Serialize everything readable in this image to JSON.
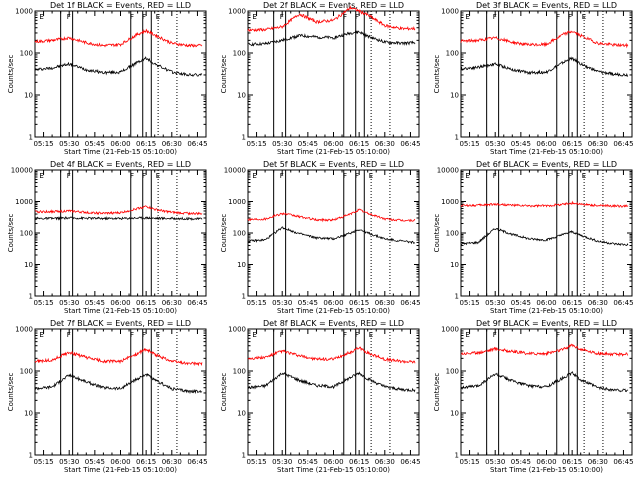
{
  "colors": {
    "background": "#ffffff",
    "frame": "#000000",
    "events": "#000000",
    "lld": "#ff0000"
  },
  "xlabel": "Start Time (21-Feb-15 05:10:00)",
  "ylabel": "Counts/sec",
  "chart_data": [
    {
      "type": "line",
      "title": "Det 1f BLACK = Events, RED = LLD",
      "xlabel": "Start Time (21-Feb-15 05:10:00)",
      "ylabel": "Counts/sec",
      "yscale": "log",
      "ylim": [
        1,
        1000
      ],
      "x_ticks": [
        "05:15",
        "05:30",
        "05:45",
        "06:00",
        "06:15",
        "06:30",
        "06:45"
      ],
      "y_ticks": [
        "1",
        "10",
        "100",
        "1000"
      ],
      "solid_markers": [
        "05:25",
        "05:32",
        "06:06",
        "06:13",
        "06:18"
      ],
      "dotted_markers": [
        "06:22",
        "06:33"
      ],
      "marker_labels": [
        {
          "x": "05:12",
          "text": "E"
        },
        {
          "x": "05:28",
          "text": "F"
        },
        {
          "x": "06:05",
          "text": "F"
        },
        {
          "x": "06:12",
          "text": "F"
        },
        {
          "x": "06:20",
          "text": "E"
        }
      ],
      "x": [
        "05:10",
        "05:20",
        "05:30",
        "05:40",
        "05:50",
        "06:00",
        "06:10",
        "06:15",
        "06:20",
        "06:30",
        "06:40",
        "06:48"
      ],
      "series": [
        {
          "name": "Events",
          "color": "#000000",
          "values": [
            40,
            44,
            55,
            40,
            34,
            35,
            60,
            75,
            55,
            35,
            30,
            30
          ]
        },
        {
          "name": "LLD",
          "color": "#ff0000",
          "values": [
            185,
            200,
            230,
            175,
            150,
            160,
            280,
            340,
            270,
            170,
            150,
            150
          ]
        }
      ]
    },
    {
      "type": "line",
      "title": "Det 2f BLACK = Events, RED = LLD",
      "xlabel": "Start Time (21-Feb-15 05:10:00)",
      "ylabel": "Counts/sec",
      "yscale": "log",
      "ylim": [
        1,
        1000
      ],
      "x_ticks": [
        "05:15",
        "05:30",
        "05:45",
        "06:00",
        "06:15",
        "06:30",
        "06:45"
      ],
      "y_ticks": [
        "1",
        "10",
        "100",
        "1000"
      ],
      "solid_markers": [
        "05:25",
        "05:32",
        "06:06",
        "06:13",
        "06:18"
      ],
      "dotted_markers": [
        "06:22",
        "06:33"
      ],
      "marker_labels": [
        {
          "x": "05:12",
          "text": "E"
        },
        {
          "x": "05:28",
          "text": "F"
        },
        {
          "x": "06:05",
          "text": "F"
        },
        {
          "x": "06:12",
          "text": "F"
        },
        {
          "x": "06:20",
          "text": "E"
        }
      ],
      "x": [
        "05:10",
        "05:20",
        "05:30",
        "05:40",
        "05:50",
        "06:00",
        "06:10",
        "06:15",
        "06:20",
        "06:30",
        "06:40",
        "06:48"
      ],
      "series": [
        {
          "name": "Events",
          "color": "#000000",
          "values": [
            160,
            165,
            200,
            260,
            240,
            230,
            300,
            320,
            250,
            180,
            170,
            175
          ]
        },
        {
          "name": "LLD",
          "color": "#ff0000",
          "values": [
            350,
            360,
            420,
            850,
            550,
            600,
            1200,
            1000,
            800,
            450,
            380,
            380
          ]
        }
      ]
    },
    {
      "type": "line",
      "title": "Det 3f BLACK = Events, RED = LLD",
      "xlabel": "Start Time (21-Feb-15 05:10:00)",
      "ylabel": "Counts/sec",
      "yscale": "log",
      "ylim": [
        1,
        1000
      ],
      "x_ticks": [
        "05:15",
        "05:30",
        "05:45",
        "06:00",
        "06:15",
        "06:30",
        "06:45"
      ],
      "y_ticks": [
        "1",
        "10",
        "100",
        "1000"
      ],
      "solid_markers": [
        "05:25",
        "05:32",
        "06:06",
        "06:13",
        "06:18"
      ],
      "dotted_markers": [
        "06:22",
        "06:33"
      ],
      "marker_labels": [
        {
          "x": "05:12",
          "text": "E"
        },
        {
          "x": "05:28",
          "text": "F"
        },
        {
          "x": "06:05",
          "text": "F"
        },
        {
          "x": "06:12",
          "text": "F"
        },
        {
          "x": "06:20",
          "text": "E"
        }
      ],
      "x": [
        "05:10",
        "05:20",
        "05:30",
        "05:40",
        "05:50",
        "06:00",
        "06:10",
        "06:15",
        "06:20",
        "06:30",
        "06:40",
        "06:48"
      ],
      "series": [
        {
          "name": "Events",
          "color": "#000000",
          "values": [
            42,
            46,
            55,
            40,
            34,
            35,
            60,
            75,
            55,
            36,
            31,
            30
          ]
        },
        {
          "name": "LLD",
          "color": "#ff0000",
          "values": [
            190,
            200,
            230,
            180,
            155,
            160,
            280,
            330,
            260,
            170,
            155,
            150
          ]
        }
      ]
    },
    {
      "type": "line",
      "title": "Det 4f BLACK = Events, RED = LLD",
      "xlabel": "Start Time (21-Feb-15 05:10:00)",
      "ylabel": "Counts/sec",
      "yscale": "log",
      "ylim": [
        1,
        10000
      ],
      "x_ticks": [
        "05:15",
        "05:30",
        "05:45",
        "06:00",
        "06:15",
        "06:30",
        "06:45"
      ],
      "y_ticks": [
        "1",
        "10",
        "100",
        "1000",
        "10000"
      ],
      "solid_markers": [
        "05:25",
        "05:32",
        "06:06",
        "06:13",
        "06:18"
      ],
      "dotted_markers": [
        "06:22",
        "06:33"
      ],
      "marker_labels": [
        {
          "x": "05:12",
          "text": "E"
        },
        {
          "x": "05:28",
          "text": "F"
        },
        {
          "x": "06:05",
          "text": "F"
        },
        {
          "x": "06:12",
          "text": "F"
        },
        {
          "x": "06:20",
          "text": "E"
        }
      ],
      "x": [
        "05:10",
        "05:20",
        "05:30",
        "05:40",
        "05:50",
        "06:00",
        "06:10",
        "06:15",
        "06:20",
        "06:30",
        "06:40",
        "06:48"
      ],
      "series": [
        {
          "name": "Events",
          "color": "#000000",
          "values": [
            290,
            290,
            300,
            295,
            290,
            290,
            300,
            305,
            295,
            290,
            285,
            280
          ]
        },
        {
          "name": "LLD",
          "color": "#ff0000",
          "values": [
            470,
            480,
            500,
            450,
            420,
            440,
            600,
            700,
            560,
            450,
            420,
            410
          ]
        }
      ]
    },
    {
      "type": "line",
      "title": "Det 5f BLACK = Events, RED = LLD",
      "xlabel": "Start Time (21-Feb-15 05:10:00)",
      "ylabel": "Counts/sec",
      "yscale": "log",
      "ylim": [
        1,
        10000
      ],
      "x_ticks": [
        "05:15",
        "05:30",
        "05:45",
        "06:00",
        "06:15",
        "06:30",
        "06:45"
      ],
      "y_ticks": [
        "1",
        "10",
        "100",
        "1000",
        "10000"
      ],
      "solid_markers": [
        "05:25",
        "05:32",
        "06:06",
        "06:13",
        "06:18"
      ],
      "dotted_markers": [
        "06:22",
        "06:33"
      ],
      "marker_labels": [
        {
          "x": "05:12",
          "text": "E"
        },
        {
          "x": "05:28",
          "text": "F"
        },
        {
          "x": "06:05",
          "text": "F"
        },
        {
          "x": "06:12",
          "text": "F"
        },
        {
          "x": "06:20",
          "text": "E"
        }
      ],
      "x": [
        "05:10",
        "05:20",
        "05:30",
        "05:40",
        "05:50",
        "06:00",
        "06:10",
        "06:15",
        "06:20",
        "06:30",
        "06:40",
        "06:48"
      ],
      "series": [
        {
          "name": "Events",
          "color": "#000000",
          "values": [
            55,
            60,
            150,
            95,
            70,
            65,
            100,
            130,
            100,
            65,
            55,
            50
          ]
        },
        {
          "name": "LLD",
          "color": "#ff0000",
          "values": [
            270,
            280,
            420,
            330,
            260,
            260,
            400,
            550,
            420,
            280,
            250,
            250
          ]
        }
      ]
    },
    {
      "type": "line",
      "title": "Det 6f BLACK = Events, RED = LLD",
      "xlabel": "Start Time (21-Feb-15 05:10:00)",
      "ylabel": "Counts/sec",
      "yscale": "log",
      "ylim": [
        1,
        10000
      ],
      "x_ticks": [
        "05:15",
        "05:30",
        "05:45",
        "06:00",
        "06:15",
        "06:30",
        "06:45"
      ],
      "y_ticks": [
        "1",
        "10",
        "100",
        "1000",
        "10000"
      ],
      "solid_markers": [
        "05:25",
        "05:32",
        "06:06",
        "06:13",
        "06:18"
      ],
      "dotted_markers": [
        "06:22",
        "06:33"
      ],
      "marker_labels": [
        {
          "x": "05:12",
          "text": "E"
        },
        {
          "x": "05:28",
          "text": "F"
        },
        {
          "x": "06:05",
          "text": "F"
        },
        {
          "x": "06:12",
          "text": "F"
        },
        {
          "x": "06:20",
          "text": "E"
        }
      ],
      "x": [
        "05:10",
        "05:20",
        "05:30",
        "05:40",
        "05:50",
        "06:00",
        "06:10",
        "06:15",
        "06:20",
        "06:30",
        "06:40",
        "06:48"
      ],
      "series": [
        {
          "name": "Events",
          "color": "#000000",
          "values": [
            45,
            50,
            140,
            90,
            65,
            60,
            90,
            110,
            85,
            55,
            45,
            42
          ]
        },
        {
          "name": "LLD",
          "color": "#ff0000",
          "values": [
            750,
            760,
            820,
            760,
            720,
            730,
            820,
            900,
            820,
            740,
            720,
            700
          ]
        }
      ]
    },
    {
      "type": "line",
      "title": "Det 7f BLACK = Events, RED = LLD",
      "xlabel": "Start Time (21-Feb-15 05:10:00)",
      "ylabel": "Counts/sec",
      "yscale": "log",
      "ylim": [
        1,
        1000
      ],
      "x_ticks": [
        "05:15",
        "05:30",
        "05:45",
        "06:00",
        "06:15",
        "06:30",
        "06:45"
      ],
      "y_ticks": [
        "1",
        "10",
        "100",
        "1000"
      ],
      "solid_markers": [
        "05:25",
        "05:32",
        "06:06",
        "06:13",
        "06:18"
      ],
      "dotted_markers": [
        "06:22",
        "06:33"
      ],
      "marker_labels": [
        {
          "x": "05:12",
          "text": "E"
        },
        {
          "x": "05:28",
          "text": "F"
        },
        {
          "x": "06:05",
          "text": "F"
        },
        {
          "x": "06:12",
          "text": "F"
        },
        {
          "x": "06:20",
          "text": "E"
        }
      ],
      "x": [
        "05:10",
        "05:20",
        "05:30",
        "05:40",
        "05:50",
        "06:00",
        "06:10",
        "06:15",
        "06:20",
        "06:30",
        "06:40",
        "06:48"
      ],
      "series": [
        {
          "name": "Events",
          "color": "#000000",
          "values": [
            38,
            42,
            80,
            55,
            40,
            38,
            65,
            85,
            60,
            38,
            33,
            32
          ]
        },
        {
          "name": "LLD",
          "color": "#ff0000",
          "values": [
            170,
            180,
            280,
            210,
            170,
            170,
            260,
            330,
            250,
            170,
            150,
            150
          ]
        }
      ]
    },
    {
      "type": "line",
      "title": "Det 8f BLACK = Events, RED = LLD",
      "xlabel": "Start Time (21-Feb-15 05:10:00)",
      "ylabel": "Counts/sec",
      "yscale": "log",
      "ylim": [
        1,
        1000
      ],
      "x_ticks": [
        "05:15",
        "05:30",
        "05:45",
        "06:00",
        "06:15",
        "06:30",
        "06:45"
      ],
      "y_ticks": [
        "1",
        "10",
        "100",
        "1000"
      ],
      "solid_markers": [
        "05:25",
        "05:32",
        "06:06",
        "06:13",
        "06:18"
      ],
      "dotted_markers": [
        "06:22",
        "06:33"
      ],
      "marker_labels": [
        {
          "x": "05:12",
          "text": "E"
        },
        {
          "x": "05:28",
          "text": "F"
        },
        {
          "x": "06:05",
          "text": "F"
        },
        {
          "x": "06:12",
          "text": "F"
        },
        {
          "x": "06:20",
          "text": "E"
        }
      ],
      "x": [
        "05:10",
        "05:20",
        "05:30",
        "05:40",
        "05:50",
        "06:00",
        "06:10",
        "06:15",
        "06:20",
        "06:30",
        "06:40",
        "06:48"
      ],
      "series": [
        {
          "name": "Events",
          "color": "#000000",
          "values": [
            40,
            44,
            90,
            60,
            45,
            42,
            70,
            90,
            65,
            42,
            36,
            35
          ]
        },
        {
          "name": "LLD",
          "color": "#ff0000",
          "values": [
            200,
            210,
            300,
            230,
            190,
            190,
            280,
            360,
            270,
            190,
            170,
            165
          ]
        }
      ]
    },
    {
      "type": "line",
      "title": "Det 9f BLACK = Events, RED = LLD",
      "xlabel": "Start Time (21-Feb-15 05:10:00)",
      "ylabel": "Counts/sec",
      "yscale": "log",
      "ylim": [
        1,
        1000
      ],
      "x_ticks": [
        "05:15",
        "05:30",
        "05:45",
        "06:00",
        "06:15",
        "06:30",
        "06:45"
      ],
      "y_ticks": [
        "1",
        "10",
        "100",
        "1000"
      ],
      "solid_markers": [
        "05:25",
        "05:32",
        "06:06",
        "06:13",
        "06:18"
      ],
      "dotted_markers": [
        "06:22",
        "06:33"
      ],
      "marker_labels": [
        {
          "x": "05:12",
          "text": "E"
        },
        {
          "x": "05:28",
          "text": "F"
        },
        {
          "x": "06:05",
          "text": "F"
        },
        {
          "x": "06:12",
          "text": "F"
        },
        {
          "x": "06:20",
          "text": "E"
        }
      ],
      "x": [
        "05:10",
        "05:20",
        "05:30",
        "05:40",
        "05:50",
        "06:00",
        "06:10",
        "06:15",
        "06:20",
        "06:30",
        "06:40",
        "06:48"
      ],
      "series": [
        {
          "name": "Events",
          "color": "#000000",
          "values": [
            40,
            44,
            85,
            58,
            44,
            42,
            70,
            90,
            62,
            40,
            35,
            34
          ]
        },
        {
          "name": "LLD",
          "color": "#ff0000",
          "values": [
            260,
            270,
            340,
            290,
            260,
            260,
            330,
            420,
            330,
            260,
            250,
            250
          ]
        }
      ]
    }
  ]
}
